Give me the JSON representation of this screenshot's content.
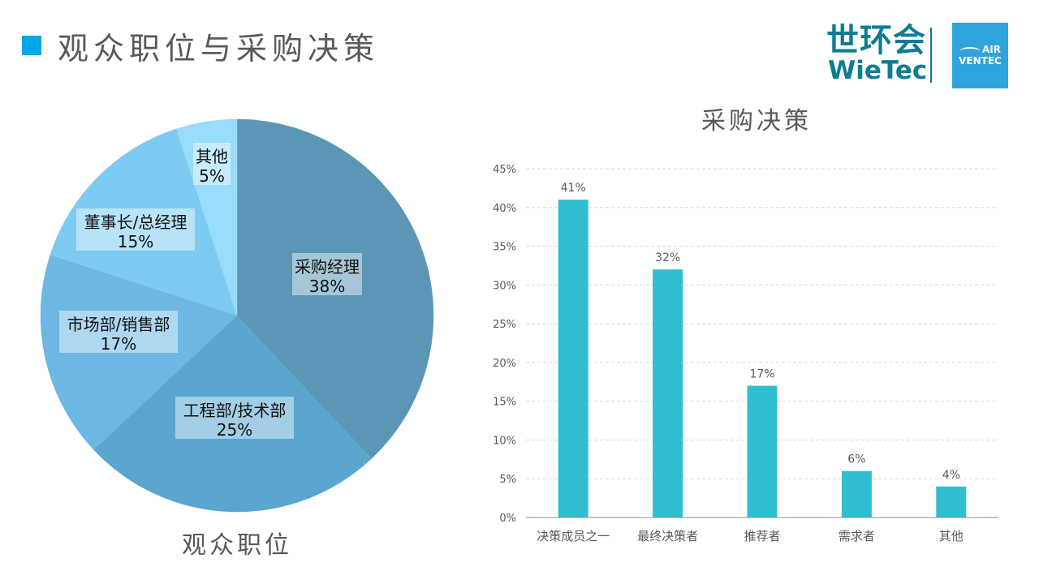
{
  "header": {
    "title": "观众职位与采购决策"
  },
  "logo": {
    "cn": "世环会",
    "en": "WieTec",
    "air": "AIR",
    "ventec": "VENTEC"
  },
  "chart_data": [
    {
      "type": "pie",
      "title": "观众职位",
      "slices": [
        {
          "label": "采购经理",
          "value": 38,
          "value_label": "38%",
          "color": "#5b97b5"
        },
        {
          "label": "工程部/技术部",
          "value": 25,
          "value_label": "25%",
          "color": "#5aa6cf"
        },
        {
          "label": "市场部/销售部",
          "value": 17,
          "value_label": "17%",
          "color": "#6cb8e3"
        },
        {
          "label": "董事长/总经理",
          "value": 15,
          "value_label": "15%",
          "color": "#7dcaf3"
        },
        {
          "label": "其他",
          "value": 5,
          "value_label": "5%",
          "color": "#99dbfb"
        }
      ]
    },
    {
      "type": "bar",
      "title": "采购决策",
      "categories": [
        "决策成员之一",
        "最终决策者",
        "推荐者",
        "需求者",
        "其他"
      ],
      "values": [
        41,
        32,
        17,
        6,
        4
      ],
      "value_labels": [
        "41%",
        "32%",
        "17%",
        "6%",
        "4%"
      ],
      "ylim": [
        0,
        45
      ],
      "yticks": [
        "0%",
        "5%",
        "10%",
        "15%",
        "20%",
        "25%",
        "30%",
        "35%",
        "40%",
        "45%"
      ],
      "bar_color": "#2fbfd0",
      "grid": true
    }
  ]
}
